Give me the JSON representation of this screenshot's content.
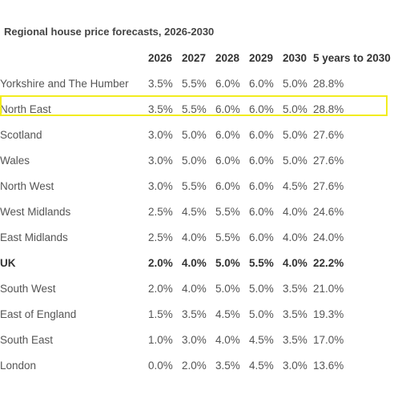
{
  "chart_data": {
    "type": "table",
    "title": "Regional house price forecasts, 2026-2030",
    "columns": [
      "",
      "2026",
      "2027",
      "2028",
      "2029",
      "2030",
      "5 years to 2030"
    ],
    "rows": [
      {
        "region": "Yorkshire and The Humber",
        "values": [
          "3.5%",
          "5.5%",
          "6.0%",
          "6.0%",
          "5.0%",
          "28.8%"
        ]
      },
      {
        "region": "North East",
        "values": [
          "3.5%",
          "5.5%",
          "6.0%",
          "6.0%",
          "5.0%",
          "28.8%"
        ],
        "highlighted": true
      },
      {
        "region": "Scotland",
        "values": [
          "3.0%",
          "5.0%",
          "6.0%",
          "6.0%",
          "5.0%",
          "27.6%"
        ]
      },
      {
        "region": "Wales",
        "values": [
          "3.0%",
          "5.0%",
          "6.0%",
          "6.0%",
          "5.0%",
          "27.6%"
        ]
      },
      {
        "region": "North West",
        "values": [
          "3.0%",
          "5.5%",
          "6.0%",
          "6.0%",
          "4.5%",
          "27.6%"
        ]
      },
      {
        "region": "West Midlands",
        "values": [
          "2.5%",
          "4.5%",
          "5.5%",
          "6.0%",
          "4.0%",
          "24.6%"
        ]
      },
      {
        "region": "East Midlands",
        "values": [
          "2.5%",
          "4.0%",
          "5.5%",
          "6.0%",
          "4.0%",
          "24.0%"
        ]
      },
      {
        "region": "UK",
        "values": [
          "2.0%",
          "4.0%",
          "5.0%",
          "5.5%",
          "4.0%",
          "22.2%"
        ],
        "bold": true
      },
      {
        "region": "South West",
        "values": [
          "2.0%",
          "4.0%",
          "5.0%",
          "5.0%",
          "3.5%",
          "21.0%"
        ]
      },
      {
        "region": "East of England",
        "values": [
          "1.5%",
          "3.5%",
          "4.5%",
          "5.0%",
          "3.5%",
          "19.3%"
        ]
      },
      {
        "region": "South East",
        "values": [
          "1.0%",
          "3.0%",
          "4.0%",
          "4.5%",
          "3.5%",
          "17.0%"
        ]
      },
      {
        "region": "London",
        "values": [
          "0.0%",
          "2.0%",
          "3.5%",
          "4.5%",
          "3.0%",
          "13.6%"
        ]
      }
    ],
    "highlight_color": "#f2ec1e"
  }
}
